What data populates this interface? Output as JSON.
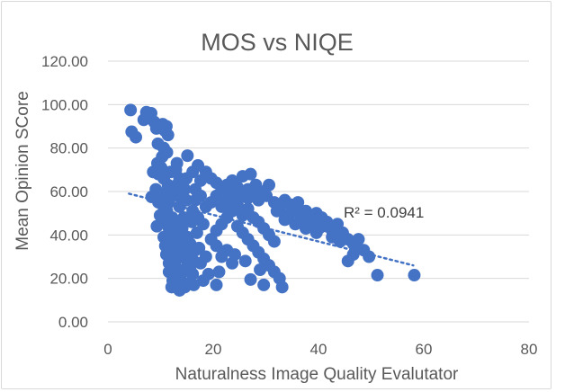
{
  "chart_data": {
    "type": "scatter",
    "title": "MOS vs NIQE",
    "xlabel": "Naturalness Image Quality Evalutator",
    "ylabel": "Mean Opinion SCore",
    "xlim": [
      0,
      80
    ],
    "ylim": [
      0,
      120
    ],
    "xticks": [
      "0",
      "20",
      "40",
      "60",
      "80"
    ],
    "yticks": [
      "0.00",
      "20.00",
      "40.00",
      "60.00",
      "80.00",
      "100.00",
      "120.00"
    ],
    "grid": "horizontal",
    "legend": "none",
    "marker_color": "#4472c4",
    "trendline": {
      "type": "linear",
      "style": "dotted",
      "color": "#4472c4",
      "x_range": [
        4,
        58
      ],
      "y_range": [
        59,
        26
      ],
      "label": "R² = 0.0941"
    },
    "series": [
      {
        "points": [
          [
            4.3,
            97.5
          ],
          [
            4.5,
            87.5
          ],
          [
            5.3,
            85
          ],
          [
            6.8,
            93
          ],
          [
            7.3,
            96.5
          ],
          [
            8.2,
            96
          ],
          [
            8.8,
            92
          ],
          [
            9.2,
            89
          ],
          [
            10.4,
            91
          ],
          [
            10.8,
            88
          ],
          [
            11.1,
            90
          ],
          [
            11.4,
            86
          ],
          [
            10.6,
            80
          ],
          [
            9.5,
            82
          ],
          [
            11.2,
            78
          ],
          [
            10.3,
            76
          ],
          [
            9.4,
            73
          ],
          [
            8.6,
            69
          ],
          [
            9.6,
            68
          ],
          [
            10.6,
            66
          ],
          [
            9.1,
            61
          ],
          [
            11.4,
            63
          ],
          [
            10.3,
            59
          ],
          [
            8.3,
            57.5
          ],
          [
            9.6,
            55
          ],
          [
            10.6,
            53
          ],
          [
            11.2,
            51
          ],
          [
            9.9,
            49
          ],
          [
            12.2,
            48
          ],
          [
            10.6,
            46
          ],
          [
            9.3,
            44
          ],
          [
            11.6,
            43
          ],
          [
            12.3,
            41
          ],
          [
            10.6,
            39
          ],
          [
            11.9,
            37
          ],
          [
            13.4,
            38
          ],
          [
            10.9,
            35
          ],
          [
            12.6,
            33
          ],
          [
            11.1,
            31
          ],
          [
            13.1,
            29
          ],
          [
            11.6,
            27
          ],
          [
            12.9,
            25
          ],
          [
            11.6,
            23
          ],
          [
            13.3,
            21
          ],
          [
            12.3,
            19
          ],
          [
            14.3,
            18
          ],
          [
            12.1,
            16
          ],
          [
            13.6,
            14.5
          ],
          [
            14.6,
            16
          ],
          [
            15.6,
            18
          ],
          [
            16.3,
            17
          ],
          [
            14.3,
            23
          ],
          [
            15.1,
            26
          ],
          [
            16.3,
            28
          ],
          [
            14.9,
            31
          ],
          [
            16.6,
            33
          ],
          [
            15.6,
            36
          ],
          [
            17.3,
            34
          ],
          [
            15.1,
            39
          ],
          [
            16.9,
            41
          ],
          [
            14.1,
            43
          ],
          [
            15.9,
            46
          ],
          [
            14.4,
            48
          ],
          [
            16.1,
            51
          ],
          [
            13.6,
            53
          ],
          [
            14.9,
            56
          ],
          [
            13.4,
            58
          ],
          [
            14.6,
            61
          ],
          [
            13.1,
            63
          ],
          [
            14.9,
            66
          ],
          [
            16.1,
            69
          ],
          [
            12.9,
            70
          ],
          [
            13.1,
            73
          ],
          [
            15.1,
            76.5
          ],
          [
            17.1,
            72
          ],
          [
            18.6,
            69
          ],
          [
            19.6,
            66
          ],
          [
            20.6,
            64
          ],
          [
            21.6,
            61
          ],
          [
            22.6,
            63
          ],
          [
            23.6,
            60
          ],
          [
            24.6,
            62
          ],
          [
            25.6,
            58
          ],
          [
            26.6,
            61
          ],
          [
            27.6,
            59
          ],
          [
            28.6,
            56
          ],
          [
            29.6,
            60
          ],
          [
            30.6,
            63
          ],
          [
            31.6,
            55
          ],
          [
            32.6,
            53
          ],
          [
            33.6,
            56
          ],
          [
            34.6,
            54
          ],
          [
            35.6,
            52
          ],
          [
            36.6,
            49
          ],
          [
            37.6,
            51
          ],
          [
            38.6,
            48
          ],
          [
            39.6,
            50
          ],
          [
            40.6,
            46
          ],
          [
            41.6,
            44
          ],
          [
            42.6,
            42
          ],
          [
            43.6,
            45
          ],
          [
            44.6,
            41
          ],
          [
            45.6,
            38
          ],
          [
            46.6,
            36
          ],
          [
            47.6,
            38
          ],
          [
            48.6,
            33
          ],
          [
            49.6,
            30
          ],
          [
            45.6,
            28
          ],
          [
            46.6,
            31
          ],
          [
            51.2,
            21.5
          ],
          [
            58.2,
            21.5
          ],
          [
            22.6,
            56
          ],
          [
            21.6,
            53
          ],
          [
            23.6,
            51
          ],
          [
            24.6,
            54
          ],
          [
            25.6,
            49
          ],
          [
            26.6,
            52
          ],
          [
            27.6,
            48
          ],
          [
            28.6,
            46
          ],
          [
            29.6,
            43
          ],
          [
            30.6,
            40
          ],
          [
            31.6,
            37
          ],
          [
            26.6,
            57
          ],
          [
            25.6,
            67
          ],
          [
            27.1,
            68
          ],
          [
            23.6,
            65
          ],
          [
            20.6,
            58
          ],
          [
            19.6,
            55
          ],
          [
            18.6,
            53
          ],
          [
            17.6,
            58
          ],
          [
            16.6,
            61
          ],
          [
            17.6,
            65
          ],
          [
            22.6,
            48
          ],
          [
            21.6,
            45
          ],
          [
            20.6,
            42
          ],
          [
            19.6,
            38
          ],
          [
            24.6,
            44
          ],
          [
            25.6,
            41
          ],
          [
            26.6,
            38
          ],
          [
            27.6,
            35
          ],
          [
            28.6,
            32
          ],
          [
            29.6,
            29
          ],
          [
            30.6,
            26
          ],
          [
            31.6,
            23
          ],
          [
            32.6,
            20
          ],
          [
            33.1,
            16
          ],
          [
            29.6,
            17
          ],
          [
            27.1,
            19.5
          ],
          [
            28.9,
            24
          ],
          [
            26.1,
            28
          ],
          [
            24.1,
            31
          ],
          [
            23.6,
            27
          ],
          [
            21.6,
            30
          ],
          [
            22.6,
            33
          ],
          [
            20.6,
            35
          ],
          [
            19.1,
            22
          ],
          [
            18.1,
            19
          ],
          [
            20.6,
            17
          ],
          [
            21.1,
            23
          ],
          [
            33.6,
            47
          ],
          [
            34.6,
            50
          ],
          [
            35.6,
            45
          ],
          [
            36.6,
            47
          ],
          [
            37.6,
            43
          ],
          [
            38.6,
            45
          ],
          [
            39.6,
            41
          ],
          [
            40.6,
            48
          ],
          [
            41.6,
            46
          ],
          [
            16.6,
            56
          ],
          [
            17.1,
            48
          ],
          [
            18.1,
            45
          ],
          [
            14.6,
            35
          ],
          [
            13.6,
            30
          ],
          [
            15.6,
            24
          ],
          [
            17.6,
            27
          ],
          [
            18.6,
            30
          ],
          [
            16.1,
            22
          ],
          [
            12.6,
            45
          ],
          [
            11.6,
            55
          ],
          [
            12.1,
            60
          ],
          [
            10.1,
            71
          ],
          [
            11.9,
            69
          ],
          [
            13.6,
            66
          ],
          [
            24.6,
            59
          ],
          [
            23.1,
            57
          ],
          [
            28.1,
            63
          ],
          [
            30.1,
            58
          ],
          [
            32.1,
            51
          ],
          [
            34.1,
            49
          ],
          [
            36.1,
            55
          ],
          [
            38.1,
            47
          ],
          [
            40.1,
            43
          ],
          [
            42.6,
            39
          ],
          [
            44.1,
            37
          ],
          [
            47.1,
            34
          ]
        ]
      }
    ]
  }
}
